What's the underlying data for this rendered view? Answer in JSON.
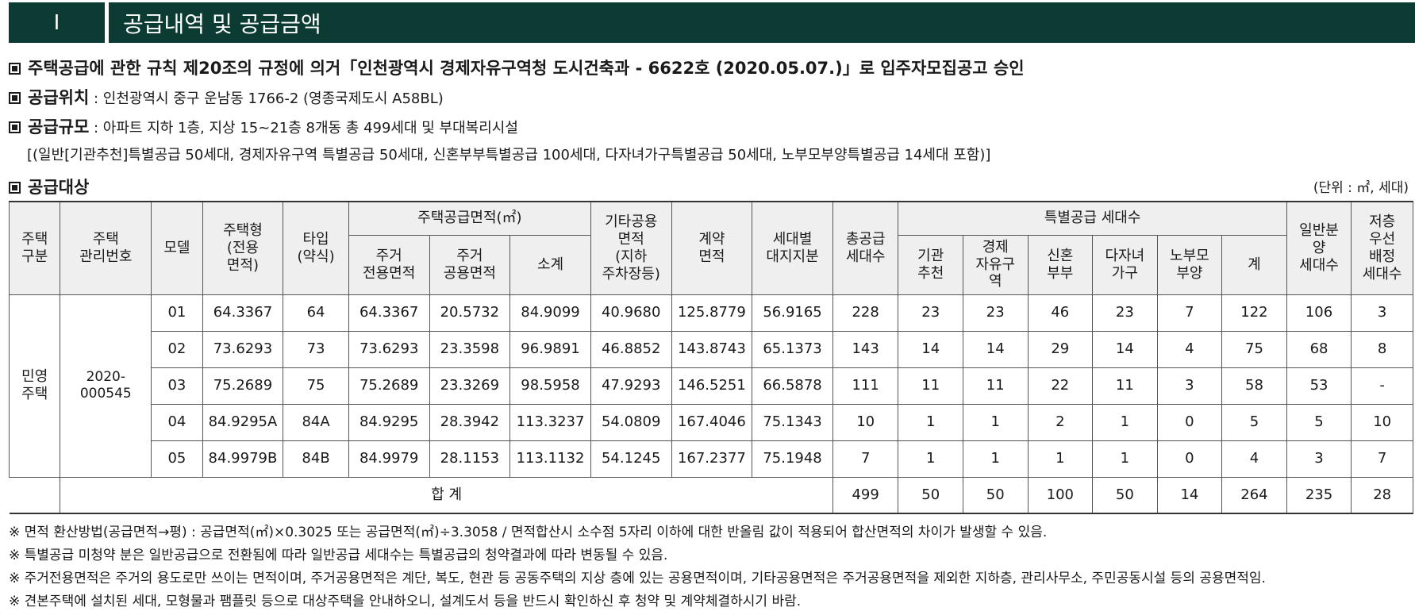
{
  "header": {
    "number": "I",
    "title": "공급내역 및 공급금액"
  },
  "approval": "주택공급에 관한 규칙 제20조의 규정에 의거「인천광역시 경제자유구역청 도시건축과 - 6622호 (2020.05.07.)」로 입주자모집공고 승인",
  "location": {
    "label": "공급위치",
    "text": " : 인천광역시 중구 운남동 1766-2 (영종국제도시 A58BL)"
  },
  "scale": {
    "label": "공급규모",
    "text": " : 아파트 지하 1층, 지상 15~21층 8개동 총 499세대 및 부대복리시설",
    "detail": "[(일반[기관추천]특별공급 50세대, 경제자유구역 특별공급 50세대, 신혼부부특별공급 100세대, 다자녀가구특별공급 50세대, 노부모부양특별공급 14세대 포함)]"
  },
  "target": {
    "label": "공급대상",
    "unit": "(단위 : ㎡, 세대)"
  },
  "table": {
    "headers": {
      "housing_type": "주택\n구분",
      "mgmt_no": "주택\n관리번호",
      "model": "모델",
      "house_type": "주택형\n(전용\n면적)",
      "type_abbr": "타입\n(약식)",
      "supply_area": "주택공급면적(㎡)",
      "exclusive": "주거\n전용면적",
      "common": "주거\n공용면적",
      "subtotal": "소계",
      "other_common": "기타공용\n면적\n(지하\n주차장등)",
      "contract": "계약\n면적",
      "land_share": "세대별\n대지지분",
      "total_supply": "총공급\n세대수",
      "special": "특별공급 세대수",
      "institution": "기관\n추천",
      "economic_zone": "경제\n자유구\n역",
      "newlywed": "신혼\n부부",
      "multi_child": "다자녀\n가구",
      "elderly": "노부모\n부양",
      "special_total": "계",
      "general": "일반분\n양\n세대수",
      "low_floor": "저층\n우선\n배정\n세대수"
    },
    "group_label": "민영\n주택",
    "mgmt_number": "2020-000545",
    "rows": [
      {
        "model": "01",
        "house_type": "64.3367",
        "type_abbr": "64",
        "exclusive": "64.3367",
        "common": "20.5732",
        "subtotal": "84.9099",
        "other_common": "40.9680",
        "contract": "125.8779",
        "land_share": "56.9165",
        "total_supply": "228",
        "institution": "23",
        "economic_zone": "23",
        "newlywed": "46",
        "multi_child": "23",
        "elderly": "7",
        "special_total": "122",
        "general": "106",
        "low_floor": "3"
      },
      {
        "model": "02",
        "house_type": "73.6293",
        "type_abbr": "73",
        "exclusive": "73.6293",
        "common": "23.3598",
        "subtotal": "96.9891",
        "other_common": "46.8852",
        "contract": "143.8743",
        "land_share": "65.1373",
        "total_supply": "143",
        "institution": "14",
        "economic_zone": "14",
        "newlywed": "29",
        "multi_child": "14",
        "elderly": "4",
        "special_total": "75",
        "general": "68",
        "low_floor": "8"
      },
      {
        "model": "03",
        "house_type": "75.2689",
        "type_abbr": "75",
        "exclusive": "75.2689",
        "common": "23.3269",
        "subtotal": "98.5958",
        "other_common": "47.9293",
        "contract": "146.5251",
        "land_share": "66.5878",
        "total_supply": "111",
        "institution": "11",
        "economic_zone": "11",
        "newlywed": "22",
        "multi_child": "11",
        "elderly": "3",
        "special_total": "58",
        "general": "53",
        "low_floor": "-"
      },
      {
        "model": "04",
        "house_type": "84.9295A",
        "type_abbr": "84A",
        "exclusive": "84.9295",
        "common": "28.3942",
        "subtotal": "113.3237",
        "other_common": "54.0809",
        "contract": "167.4046",
        "land_share": "75.1343",
        "total_supply": "10",
        "institution": "1",
        "economic_zone": "1",
        "newlywed": "2",
        "multi_child": "1",
        "elderly": "0",
        "special_total": "5",
        "general": "5",
        "low_floor": "10"
      },
      {
        "model": "05",
        "house_type": "84.9979B",
        "type_abbr": "84B",
        "exclusive": "84.9979",
        "common": "28.1153",
        "subtotal": "113.1132",
        "other_common": "54.1245",
        "contract": "167.2377",
        "land_share": "75.1948",
        "total_supply": "7",
        "institution": "1",
        "economic_zone": "1",
        "newlywed": "1",
        "multi_child": "1",
        "elderly": "0",
        "special_total": "4",
        "general": "3",
        "low_floor": "7"
      }
    ],
    "total": {
      "label": "합 계",
      "total_supply": "499",
      "institution": "50",
      "economic_zone": "50",
      "newlywed": "100",
      "multi_child": "50",
      "elderly": "14",
      "special_total": "264",
      "general": "235",
      "low_floor": "28"
    }
  },
  "notes": [
    "※ 면적 환산방법(공급면적→평) : 공급면적(㎡)×0.3025 또는 공급면적(㎡)÷3.3058 / 면적합산시 소수점 5자리 이하에 대한 반올림 값이 적용되어 합산면적의 차이가 발생할 수 있음.",
    "※ 특별공급 미청약 분은 일반공급으로 전환됨에 따라 일반공급 세대수는 특별공급의 청약결과에 따라 변동될 수 있음.",
    "※ 주거전용면적은 주거의 용도로만 쓰이는 면적이며, 주거공용면적은 계단, 복도, 현관 등 공동주택의 지상 층에 있는 공용면적이며, 기타공용면적은 주거공용면적을 제외한 지하층, 관리사무소, 주민공동시설 등의 공용면적임.",
    "※ 견본주택에 설치된 세대, 모형물과 팸플릿 등으로 대상주택을 안내하오니, 설계도서 등을 반드시 확인하신 후 청약 및 계약체결하시기 바람."
  ]
}
